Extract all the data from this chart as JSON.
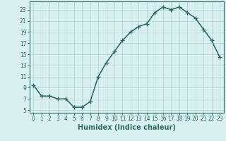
{
  "x": [
    0,
    1,
    2,
    3,
    4,
    5,
    6,
    7,
    8,
    9,
    10,
    11,
    12,
    13,
    14,
    15,
    16,
    17,
    18,
    19,
    20,
    21,
    22,
    23
  ],
  "y": [
    9.5,
    7.5,
    7.5,
    7.0,
    7.0,
    5.5,
    5.5,
    6.5,
    11.0,
    13.5,
    15.5,
    17.5,
    19.0,
    20.0,
    20.5,
    22.5,
    23.5,
    23.0,
    23.5,
    22.5,
    21.5,
    19.5,
    17.5,
    14.5
  ],
  "line_color": "#2e6e65",
  "marker": "D",
  "marker_size": 2.0,
  "bg_color": "#d8f0ee",
  "grid_color": "#b8d8d4",
  "xlabel": "Humidex (Indice chaleur)",
  "ylabel_ticks": [
    5,
    7,
    9,
    11,
    13,
    15,
    17,
    19,
    21,
    23
  ],
  "xlim": [
    -0.5,
    23.5
  ],
  "ylim": [
    4.5,
    24.5
  ],
  "xtick_labels": [
    "0",
    "1",
    "2",
    "3",
    "4",
    "5",
    "6",
    "7",
    "8",
    "9",
    "10",
    "11",
    "12",
    "13",
    "14",
    "15",
    "16",
    "17",
    "18",
    "19",
    "20",
    "21",
    "22",
    "23"
  ],
  "tick_fontsize": 5.5,
  "label_fontsize": 7.0,
  "line_width": 1.2
}
